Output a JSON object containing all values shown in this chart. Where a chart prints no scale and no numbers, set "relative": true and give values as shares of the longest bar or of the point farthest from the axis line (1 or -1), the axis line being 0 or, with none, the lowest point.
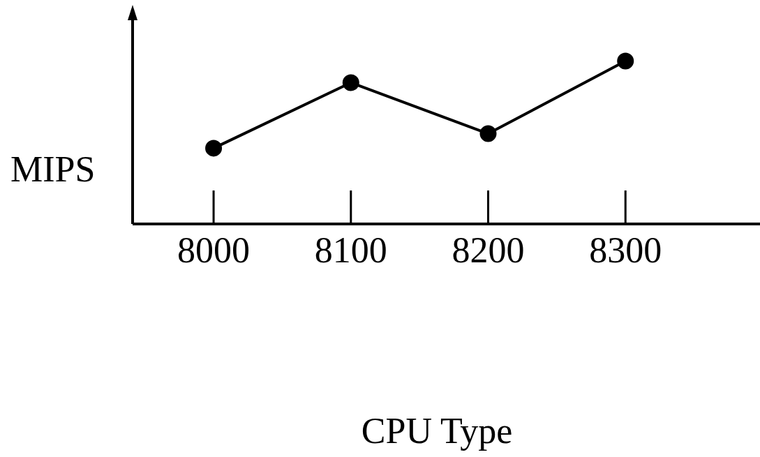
{
  "chart_data": {
    "type": "line",
    "xlabel": "CPU Type",
    "ylabel": "MIPS",
    "categories": [
      "8000",
      "8100",
      "8200",
      "8300"
    ],
    "series": [
      {
        "color": "#000000",
        "values": [
          0.465,
          0.867,
          0.554,
          1
        ]
      }
    ],
    "relative": true,
    "marker": "circle",
    "line_style": "solid",
    "grid": false,
    "legend": false
  }
}
